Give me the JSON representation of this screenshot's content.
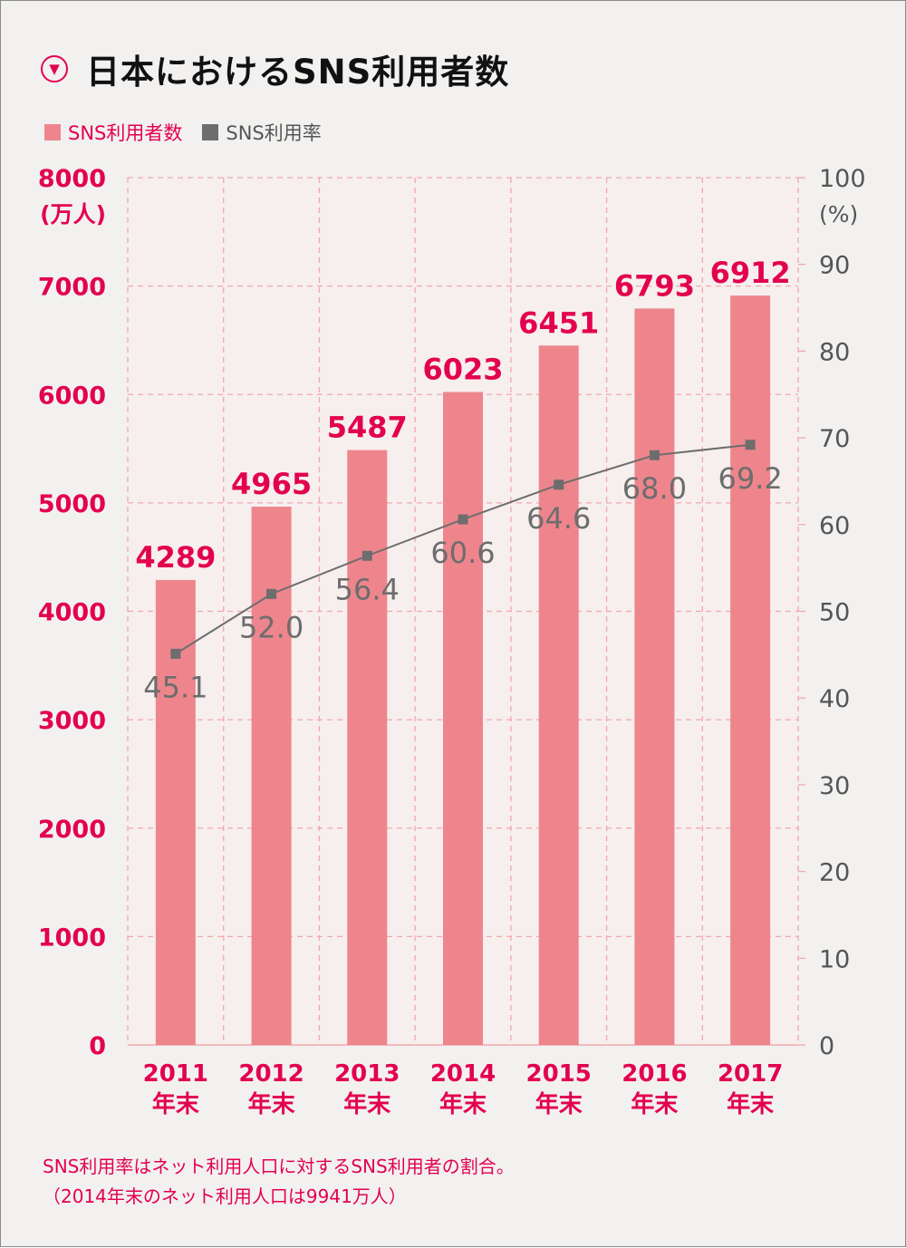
{
  "title": "日本におけるSNS利用者数",
  "title_icon": "chevron-down-circle-icon",
  "legend": [
    {
      "label": "SNS利用者数",
      "color": "#ee858d"
    },
    {
      "label": "SNS利用率",
      "color": "#6d6d6d"
    }
  ],
  "colors": {
    "accent": "#e3004f",
    "bar": "#ee858d",
    "line": "#6d6d6d",
    "grid": "#f2a7ad",
    "axis_right": "#555555"
  },
  "notes": [
    "SNS利用率はネット利用人口に対するSNS利用者の割合。",
    "（2014年末のネット利用人口は9941万人）"
  ],
  "chart_data": {
    "type": "bar",
    "categories": [
      "2011\n年末",
      "2012\n年末",
      "2013\n年末",
      "2014\n年末",
      "2015\n年末",
      "2016\n年末",
      "2017\n年末"
    ],
    "series": [
      {
        "name": "SNS利用者数",
        "type": "bar",
        "axis": "left",
        "values": [
          4289,
          4965,
          5487,
          6023,
          6451,
          6793,
          6912
        ]
      },
      {
        "name": "SNS利用率",
        "type": "line",
        "axis": "right",
        "values": [
          45.1,
          52.0,
          56.4,
          60.6,
          64.6,
          68.0,
          69.2
        ]
      }
    ],
    "y_left": {
      "label": "(万人)",
      "ylim": [
        0,
        8000
      ],
      "ticks": [
        0,
        1000,
        2000,
        3000,
        4000,
        5000,
        6000,
        7000,
        8000
      ]
    },
    "y_right": {
      "label": "(%)",
      "ylim": [
        0,
        100
      ],
      "ticks": [
        0,
        10,
        20,
        30,
        40,
        50,
        60,
        70,
        80,
        90,
        100
      ]
    },
    "grid": true,
    "legend_position": "top-left"
  }
}
